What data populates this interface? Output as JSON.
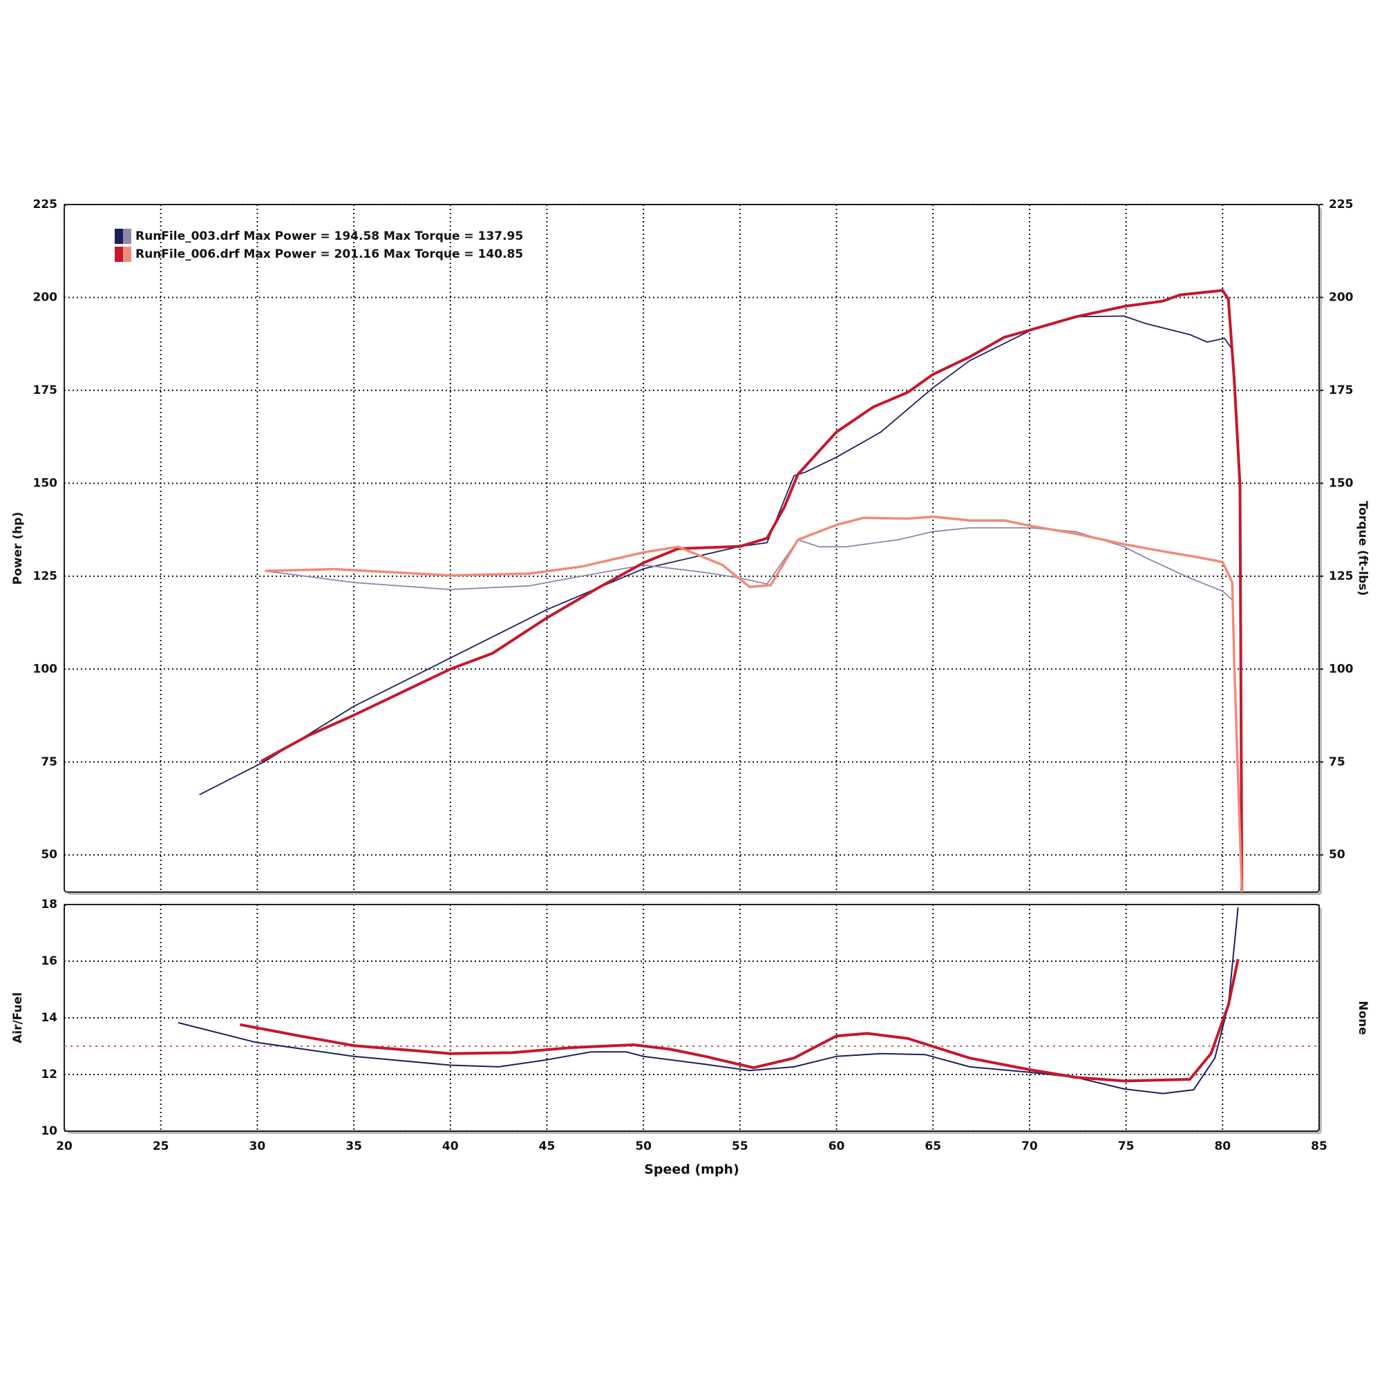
{
  "chart_data": [
    {
      "type": "line",
      "ylabel": "Power (hp)",
      "y2label": "Torque (ft-lbs)",
      "xlim": [
        20,
        85
      ],
      "xticks": [
        20,
        25,
        30,
        35,
        40,
        45,
        50,
        55,
        60,
        65,
        70,
        75,
        80,
        85
      ],
      "ylim": [
        40,
        225
      ],
      "yticks": [
        50,
        75,
        100,
        125,
        150,
        175,
        200,
        225
      ],
      "y2lim": [
        40,
        225
      ],
      "y2ticks": [
        50,
        75,
        100,
        125,
        150,
        175,
        200,
        225
      ],
      "grid": true,
      "legend": "upper left",
      "series": [
        {
          "name": "RunFile_003.drf Max Power = 194.58 Max Torque = 137.95",
          "color": "#1c1f5c",
          "x": [
            27.0,
            30.4,
            35,
            40,
            45,
            50,
            55,
            56.4,
            57.8,
            58.4,
            60,
            62.3,
            65,
            66.9,
            70,
            72.4,
            74.9,
            76,
            78.3,
            79.2,
            80.1,
            80.5
          ],
          "values": [
            66.2,
            75.2,
            90,
            103,
            116,
            127,
            133,
            134,
            152,
            153,
            157,
            163.8,
            175.7,
            183,
            191,
            194.8,
            195,
            193,
            190,
            188,
            189,
            186
          ]
        },
        {
          "color": "#9187a8",
          "axis": "y2",
          "x": [
            30.4,
            35,
            40,
            44.1,
            46.8,
            50,
            53.2,
            55,
            56.4,
            58,
            59.1,
            60.5,
            63.2,
            65,
            66.9,
            70,
            72.4,
            74.9,
            76,
            78.3,
            80,
            80.5
          ],
          "values": [
            126.4,
            123.3,
            121.4,
            122.4,
            125,
            128,
            126,
            124.5,
            122.9,
            134.8,
            132.9,
            132.9,
            134.8,
            137,
            138,
            138,
            137,
            132.9,
            130,
            124.5,
            121,
            118.6
          ]
        },
        {
          "name": "RunFile_006.drf Max Power = 201.16 Max Torque = 140.85",
          "color": "#c4182c",
          "x": [
            30.2,
            32.6,
            35,
            40,
            42.2,
            45,
            47.7,
            50,
            51.8,
            55,
            56.4,
            57.3,
            58,
            60,
            61.9,
            63.7,
            65,
            66.9,
            68.7,
            70,
            72.4,
            74.9,
            76.9,
            77.8,
            80,
            80.3,
            80.6,
            80.9,
            81
          ],
          "values": [
            75.2,
            82,
            87.6,
            100,
            104.3,
            113.8,
            122,
            128.6,
            132.4,
            133,
            135.2,
            143.6,
            152.4,
            163.8,
            170.5,
            174.5,
            179.3,
            184,
            189.3,
            191.2,
            194.8,
            197.6,
            199,
            200.7,
            201.9,
            199.5,
            178,
            149.5,
            40
          ]
        },
        {
          "color": "#f08a78",
          "axis": "y2",
          "x": [
            30.4,
            34,
            40,
            44.1,
            46.8,
            50,
            51.8,
            54.1,
            55.5,
            56.6,
            58,
            60,
            61.4,
            63.7,
            65,
            66.9,
            68.7,
            70,
            72.4,
            74.9,
            76.9,
            78.8,
            80,
            80.5,
            80.6,
            81
          ],
          "values": [
            126.4,
            126.9,
            125.2,
            125.7,
            127.6,
            131.4,
            132.9,
            128,
            122.1,
            122.6,
            134.8,
            138.8,
            140.7,
            140.5,
            141,
            140,
            140,
            138.6,
            136.4,
            133.6,
            131.7,
            130,
            128.8,
            123.3,
            102,
            40
          ]
        }
      ]
    },
    {
      "type": "line",
      "ylabel": "Air/Fuel",
      "y2label": "None",
      "xlabel": "Speed (mph)",
      "xlim": [
        20,
        85
      ],
      "xticks": [
        20,
        25,
        30,
        35,
        40,
        45,
        50,
        55,
        60,
        65,
        70,
        75,
        80,
        85
      ],
      "ylim": [
        10,
        18
      ],
      "yticks": [
        10,
        12,
        14,
        16,
        18
      ],
      "grid": true,
      "ref_line": {
        "value": 13,
        "color": "#c06070"
      },
      "series": [
        {
          "color": "#1c1f5c",
          "x": [
            25.9,
            29.9,
            35,
            40,
            42.5,
            45,
            47.3,
            49.1,
            50,
            53.2,
            55.5,
            57.8,
            60,
            62.3,
            64.6,
            66.9,
            70,
            72.4,
            74.9,
            76.9,
            78.5,
            79.6,
            80.3,
            80.8
          ],
          "values": [
            13.83,
            13.14,
            12.64,
            12.33,
            12.27,
            12.52,
            12.8,
            12.8,
            12.64,
            12.36,
            12.14,
            12.27,
            12.64,
            12.74,
            12.7,
            12.27,
            12.08,
            11.9,
            11.49,
            11.33,
            11.46,
            12.58,
            14.45,
            17.9
          ]
        },
        {
          "color": "#c4182c",
          "x": [
            29.1,
            32.2,
            35,
            40,
            43.2,
            46.3,
            49.5,
            51.4,
            53.2,
            55.7,
            57.8,
            60,
            61.6,
            63.7,
            65,
            66.9,
            70,
            72.4,
            74.9,
            78.3,
            79.4,
            80.3,
            80.8
          ],
          "values": [
            13.76,
            13.36,
            13.02,
            12.74,
            12.77,
            12.95,
            13.05,
            12.89,
            12.64,
            12.24,
            12.58,
            13.36,
            13.45,
            13.27,
            12.99,
            12.58,
            12.17,
            11.9,
            11.77,
            11.83,
            12.74,
            14.45,
            16.07
          ]
        }
      ]
    }
  ]
}
